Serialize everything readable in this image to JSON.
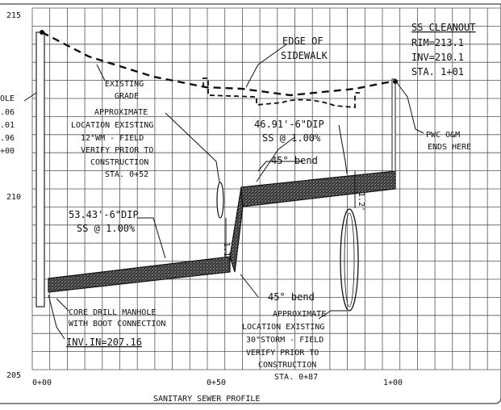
{
  "drawing": {
    "title": "SANITARY SEWER PROFILE",
    "elevations": [
      "215",
      "210",
      "205"
    ],
    "stations": [
      "0+00",
      "0+50",
      "1+00"
    ],
    "left_cut_labels": [
      "OLE",
      ".06",
      ".01",
      ".96",
      "+00"
    ],
    "cleanout": {
      "title": "SS CLEANOUT",
      "rim": "RIM=213.1",
      "inv": "INV=210.1",
      "sta": "STA. 1+01"
    },
    "edge_sidewalk": [
      "EDGE OF",
      "SIDEWALK"
    ],
    "existing_grade": [
      "EXISTING",
      "GRADE"
    ],
    "water_main_note": [
      "APPROXIMATE",
      "LOCATION EXISTING",
      "12\"WM - FIELD",
      "VERIFY PRIOR TO",
      "CONSTRUCTION",
      "STA. 0+52"
    ],
    "pipe_upper": [
      "46.91'-6\"DIP",
      "SS @ 1.00%"
    ],
    "pipe_lower": [
      "53.43'-6\"DIP",
      "SS @ 1.00%"
    ],
    "bend_upper": "45° bend",
    "bend_lower": "45° bend",
    "pwc_note": [
      "PWC O&M",
      "ENDS HERE"
    ],
    "manhole_note": [
      "CORE DRILL MANHOLE",
      "WITH BOOT CONNECTION"
    ],
    "inv_in": "INV.IN=207.16",
    "storm_note": [
      "APPROXIMATE",
      "LOCATION EXISTING",
      "30\"STORM - FIELD",
      "VERIFY PRIOR TO",
      "CONSTRUCTION",
      "STA. 0+87"
    ],
    "dim_left": "1.1'",
    "dim_right": "1.2'"
  }
}
